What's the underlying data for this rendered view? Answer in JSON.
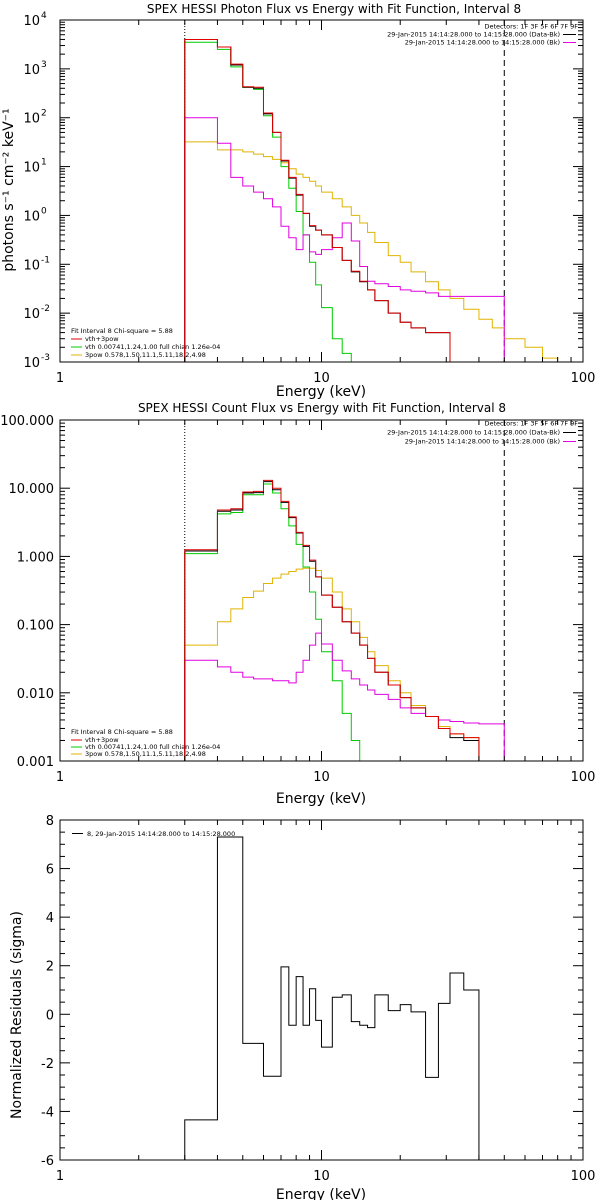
{
  "chart_data": [
    {
      "type": "line",
      "title": "SPEX HESSI Photon Flux vs Energy with Fit Function, Interval 8",
      "xlabel": "Energy (keV)",
      "ylabel": "photons s⁻¹ cm⁻² keV⁻¹",
      "xscale": "log",
      "yscale": "log",
      "xlim": [
        1,
        100
      ],
      "ylim": [
        0.001,
        10000
      ],
      "x_ticks": [
        {
          "v": 1,
          "label": "1"
        },
        {
          "v": 10,
          "label": "10"
        },
        {
          "v": 100,
          "label": "100"
        }
      ],
      "y_ticks": [
        {
          "v": 0.001,
          "base": "10",
          "exp": "-3"
        },
        {
          "v": 0.01,
          "base": "10",
          "exp": "-2"
        },
        {
          "v": 0.1,
          "base": "10",
          "exp": "-1"
        },
        {
          "v": 1,
          "base": "10",
          "exp": "0"
        },
        {
          "v": 10,
          "base": "10",
          "exp": "1"
        },
        {
          "v": 100,
          "base": "10",
          "exp": "2"
        },
        {
          "v": 1000,
          "base": "10",
          "exp": "3"
        },
        {
          "v": 10000,
          "base": "10",
          "exp": "4"
        }
      ],
      "header": [
        "Detectors: 1F 3F 5F 6F 7F 9F",
        "29-Jan-2015 14:14:28.000 to 14:15:28.000 (Data-Bk)",
        "29-Jan-2015 14:14:28.000 to 14:15:28.000 (Bk)"
      ],
      "fit_info": [
        "Fit Interval  8    Chi-square = 5.88",
        "vth+3pow",
        "vth 0.00741,1.24,1.00   full chian 1.26e-04",
        "3pow 0.578,1.50,11.1,5.11,18.2,4.98"
      ],
      "vlines": [
        3,
        50
      ],
      "edges": [
        3.0,
        3.5,
        4.0,
        4.5,
        5.0,
        5.5,
        6.0,
        6.5,
        7.0,
        7.5,
        8.0,
        8.5,
        9.0,
        9.5,
        10.0,
        11.0,
        12.0,
        13.0,
        14.0,
        15.0,
        16.0,
        18.0,
        20.0,
        22.0,
        25.0,
        28.0,
        31.0,
        35.0,
        40.0,
        45.0,
        50.0,
        60.0,
        70.0,
        80.0
      ],
      "series": [
        {
          "color": "#000000",
          "values": [
            4000,
            4000,
            2800,
            1200,
            420,
            400,
            120,
            50,
            13,
            5.8,
            2.6,
            1.1,
            0.6,
            0.5,
            0.4,
            0.22,
            0.12,
            0.07,
            0.044,
            0.03,
            0.018,
            0.01,
            0.0065,
            0.005,
            0.004,
            0.004
          ]
        },
        {
          "color": "#e00000",
          "values": [
            4000,
            4000,
            2800,
            1250,
            430,
            420,
            125,
            50,
            13.5,
            6.0,
            2.7,
            1.1,
            0.62,
            0.5,
            0.4,
            0.22,
            0.12,
            0.072,
            0.045,
            0.03,
            0.018,
            0.01,
            0.0065,
            0.005,
            0.004,
            0.004
          ]
        },
        {
          "color": "#00cc00",
          "values": [
            3500,
            3500,
            2500,
            1100,
            420,
            380,
            110,
            40,
            10,
            3.6,
            1.2,
            0.4,
            0.11,
            0.038,
            0.013,
            0.003,
            0.0015,
            0.001
          ]
        },
        {
          "color": "#e0b400",
          "values": [
            32,
            32,
            22,
            22,
            20,
            18,
            16,
            14,
            12,
            9.0,
            7.0,
            6.0,
            5.0,
            4.0,
            3.0,
            2.2,
            1.5,
            1.0,
            0.7,
            0.45,
            0.28,
            0.15,
            0.11,
            0.07,
            0.044,
            0.03,
            0.02,
            0.012,
            0.0075,
            0.005,
            0.003,
            0.002,
            0.0012
          ]
        },
        {
          "color": "#e000e0",
          "values": [
            100,
            100,
            30,
            6,
            4,
            3,
            2.2,
            1.5,
            0.6,
            0.35,
            0.2,
            0.4,
            0.18,
            0.16,
            0.2,
            0.35,
            0.7,
            0.3,
            0.09,
            0.045,
            0.04,
            0.035,
            0.03,
            0.028,
            0.026,
            0.022,
            0.022,
            0.022,
            0.022,
            0.022
          ]
        }
      ]
    },
    {
      "type": "line",
      "title": "SPEX HESSI Count Flux vs Energy with Fit Function, Interval 8",
      "xlabel": "Energy (keV)",
      "ylabel": "",
      "xscale": "log",
      "yscale": "log",
      "xlim": [
        1,
        100
      ],
      "ylim": [
        0.001,
        100
      ],
      "x_ticks": [
        {
          "v": 1,
          "label": "1"
        },
        {
          "v": 10,
          "label": "10"
        },
        {
          "v": 100,
          "label": "100"
        }
      ],
      "y_ticks": [
        {
          "v": 0.001,
          "label": "0.001"
        },
        {
          "v": 0.01,
          "label": "0.010"
        },
        {
          "v": 0.1,
          "label": "0.100"
        },
        {
          "v": 1,
          "label": "1.000"
        },
        {
          "v": 10,
          "label": "10.000"
        },
        {
          "v": 100,
          "label": "100.000"
        }
      ],
      "header": [
        "Detectors: 1F 3F 5F 6F 7F 9F",
        "29-Jan-2015 14:14:28.000 to 14:15:28.000 (Data-Bk)",
        "29-Jan-2015 14:14:28.000 to 14:15:28.000 (Bk)"
      ],
      "fit_info": [
        "Fit Interval  8    Chi-square = 5.88",
        "vth+3pow",
        "vth 0.00741,1.24,1.00   full chian 1.26e-04",
        "3pow 0.578,1.50,11.1,5.11,18.2,4.98"
      ],
      "vlines": [
        3,
        50
      ],
      "edges": [
        3.0,
        3.5,
        4.0,
        4.5,
        5.0,
        5.5,
        6.0,
        6.5,
        7.0,
        7.5,
        8.0,
        8.5,
        9.0,
        9.5,
        10.0,
        11.0,
        12.0,
        13.0,
        14.0,
        15.0,
        16.0,
        18.0,
        20.0,
        22.0,
        25.0,
        28.0,
        31.0,
        35.0,
        40.0,
        45.0,
        50.0
      ],
      "series": [
        {
          "color": "#000000",
          "values": [
            1.2,
            1.2,
            4.6,
            4.8,
            8.5,
            8.6,
            12.5,
            9.5,
            6.2,
            3.7,
            2.2,
            1.4,
            0.85,
            0.5,
            0.27,
            0.18,
            0.11,
            0.075,
            0.05,
            0.032,
            0.02,
            0.013,
            0.0085,
            0.006,
            0.0045,
            0.003,
            0.0022,
            0.002
          ]
        },
        {
          "color": "#e00000",
          "values": [
            1.25,
            1.25,
            4.8,
            5.0,
            8.8,
            9.0,
            13.0,
            10.0,
            6.4,
            3.8,
            2.25,
            1.45,
            0.88,
            0.5,
            0.27,
            0.18,
            0.11,
            0.075,
            0.05,
            0.032,
            0.02,
            0.013,
            0.0085,
            0.006,
            0.0045,
            0.003,
            0.0025,
            0.0022
          ]
        },
        {
          "color": "#00cc00",
          "values": [
            1.1,
            1.1,
            4.2,
            4.4,
            8.0,
            8.0,
            11.5,
            8.5,
            5.0,
            2.8,
            1.5,
            0.7,
            0.3,
            0.12,
            0.04,
            0.015,
            0.005,
            0.002,
            0.001
          ]
        },
        {
          "color": "#e0b400",
          "values": [
            0.05,
            0.05,
            0.11,
            0.17,
            0.25,
            0.31,
            0.4,
            0.48,
            0.55,
            0.6,
            0.65,
            0.67,
            0.67,
            0.62,
            0.48,
            0.3,
            0.17,
            0.11,
            0.065,
            0.04,
            0.025,
            0.015,
            0.01,
            0.0065,
            0.0045,
            0.0032,
            0.0025,
            0.0022
          ]
        },
        {
          "color": "#e000e0",
          "values": [
            0.03,
            0.03,
            0.024,
            0.02,
            0.017,
            0.016,
            0.016,
            0.015,
            0.015,
            0.014,
            0.02,
            0.03,
            0.05,
            0.075,
            0.052,
            0.03,
            0.021,
            0.016,
            0.013,
            0.011,
            0.0095,
            0.008,
            0.006,
            0.005,
            0.0045,
            0.004,
            0.0038,
            0.0036,
            0.0035,
            0.0035
          ]
        }
      ]
    },
    {
      "type": "line",
      "title": "",
      "xlabel": "Energy (keV)",
      "ylabel": "Normalized Residuals (sigma)",
      "xscale": "log",
      "yscale": "linear",
      "xlim": [
        1,
        100
      ],
      "ylim": [
        -6,
        8
      ],
      "x_ticks": [
        {
          "v": 1,
          "label": "1"
        },
        {
          "v": 10,
          "label": "10"
        },
        {
          "v": 100,
          "label": "100"
        }
      ],
      "y_ticks": [
        {
          "v": -6,
          "label": "-6"
        },
        {
          "v": -4,
          "label": "-4"
        },
        {
          "v": -2,
          "label": "-2"
        },
        {
          "v": 0,
          "label": "0"
        },
        {
          "v": 2,
          "label": "2"
        },
        {
          "v": 4,
          "label": "4"
        },
        {
          "v": 6,
          "label": "6"
        },
        {
          "v": 8,
          "label": "8"
        }
      ],
      "legend": "8, 29-Jan-2015 14:14:28.000 to 14:15:28.000",
      "edges": [
        3.0,
        4.0,
        5.0,
        6.0,
        7.0,
        7.5,
        8.0,
        8.5,
        9.0,
        9.5,
        10.0,
        11.0,
        12.0,
        13.0,
        14.0,
        15.0,
        16.0,
        18.0,
        20.0,
        22.0,
        25.0,
        28.0,
        31.0,
        35.0,
        40.0,
        45.0,
        50.0
      ],
      "series": [
        {
          "color": "#000000",
          "values": [
            -4.35,
            7.3,
            -1.2,
            -2.55,
            1.95,
            -0.45,
            1.55,
            -0.45,
            1.05,
            -0.25,
            -1.35,
            0.7,
            0.8,
            -0.3,
            -0.45,
            -0.55,
            0.8,
            0.15,
            0.4,
            0.1,
            -2.6,
            0.45,
            1.7,
            1.0
          ]
        }
      ]
    }
  ]
}
